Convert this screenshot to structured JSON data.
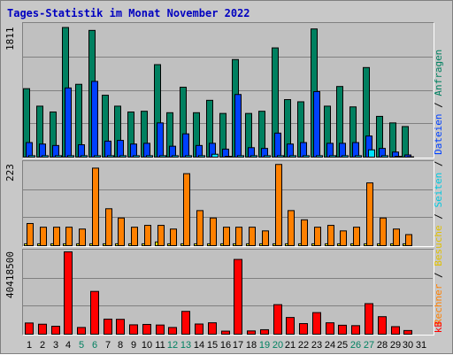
{
  "title": "Tages-Statistik im Monat November 2022",
  "colors": {
    "anfragen": "#008060",
    "dateien": "#0040ff",
    "seiten": "#00e0ff",
    "besuche": "#ffff00",
    "rechner": "#ff8000",
    "kb": "#ff0000",
    "weekday_label": "#000000",
    "weekend_label": "#008060",
    "grid": "#808080"
  },
  "y_max_labels": {
    "top": "1811",
    "middle": "223",
    "bottom": "40418500"
  },
  "legend": {
    "anfragen": "Anfragen",
    "dateien": "Dateien",
    "seiten": "Seiten",
    "besuche": "Besuche",
    "rechner": "Rechner",
    "kb": "kB",
    "separator": " / "
  },
  "chart_data": {
    "type": "bar",
    "title": "Tages-Statistik im Monat November 2022",
    "categories": [
      "1",
      "2",
      "3",
      "4",
      "5",
      "6",
      "7",
      "8",
      "9",
      "10",
      "11",
      "12",
      "13",
      "14",
      "15",
      "16",
      "17",
      "18",
      "19",
      "20",
      "21",
      "22",
      "23",
      "24",
      "25",
      "26",
      "27",
      "28",
      "29",
      "30",
      "31"
    ],
    "weekend_days": [
      "5",
      "6",
      "12",
      "13",
      "19",
      "20",
      "26",
      "27"
    ],
    "panels": [
      {
        "name": "top",
        "ylim": [
          0,
          1811
        ],
        "series": [
          {
            "name": "Anfragen",
            "values": [
              940,
              700,
              620,
              1780,
              1000,
              1740,
              850,
              700,
              620,
              630,
              1270,
              610,
              960,
              610,
              780,
              600,
              1340,
              600,
              630,
              1500,
              790,
              760,
              1760,
              700,
              970,
              690,
              1230,
              560,
              470,
              420,
              0
            ]
          },
          {
            "name": "Dateien",
            "values": [
              200,
              180,
              160,
              950,
              170,
              1040,
              220,
              230,
              180,
              190,
              470,
              150,
              320,
              160,
              190,
              110,
              860,
              130,
              120,
              330,
              180,
              200,
              900,
              190,
              190,
              200,
              290,
              120,
              70,
              30,
              0
            ]
          },
          {
            "name": "Seiten",
            "values": [
              20,
              20,
              20,
              20,
              20,
              20,
              20,
              20,
              20,
              20,
              20,
              20,
              20,
              20,
              40,
              10,
              20,
              20,
              20,
              20,
              20,
              20,
              20,
              20,
              20,
              20,
              100,
              20,
              10,
              5,
              0
            ]
          }
        ]
      },
      {
        "name": "middle",
        "ylim": [
          0,
          223
        ],
        "series": [
          {
            "name": "Besuche",
            "values": [
              5,
              5,
              5,
              5,
              5,
              5,
              5,
              5,
              5,
              5,
              10,
              5,
              5,
              5,
              5,
              5,
              5,
              5,
              5,
              5,
              5,
              5,
              5,
              5,
              5,
              5,
              5,
              5,
              5,
              5,
              0
            ]
          },
          {
            "name": "Rechner",
            "values": [
              60,
              50,
              50,
              50,
              45,
              210,
              100,
              75,
              50,
              55,
              55,
              45,
              195,
              95,
              75,
              50,
              50,
              50,
              40,
              220,
              95,
              70,
              50,
              55,
              40,
              50,
              170,
              75,
              45,
              30,
              0
            ]
          }
        ]
      },
      {
        "name": "bottom",
        "ylim": [
          0,
          40418500
        ],
        "series": [
          {
            "name": "kB",
            "values": [
              5500000,
              4900000,
              3900000,
              40418500,
              3300000,
              21000000,
              7400000,
              7300000,
              4600000,
              4800000,
              4500000,
              3300000,
              11200000,
              5000000,
              5600000,
              1500000,
              36700000,
              1600000,
              2200000,
              14500000,
              8200000,
              5200000,
              10600000,
              5600000,
              4400000,
              4200000,
              15000000,
              8600000,
              3700000,
              1800000,
              0
            ]
          }
        ]
      }
    ]
  }
}
